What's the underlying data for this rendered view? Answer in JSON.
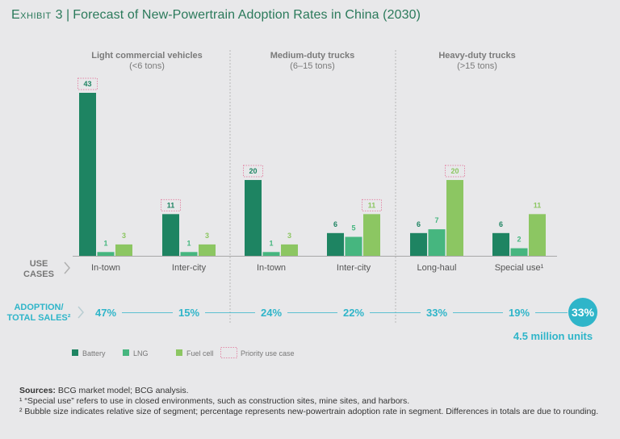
{
  "header": {
    "exhibit": "Exhibit 3",
    "title": "Forecast of New-Powertrain Adoption Rates in China (2030)"
  },
  "colors": {
    "battery": "#1e8462",
    "lng": "#46b67f",
    "fuel_cell": "#8cc662",
    "priority_box": "#e28aa8",
    "accent": "#2fb5c9",
    "title": "#2b7a5b"
  },
  "chart_data": {
    "type": "bar",
    "title": "Forecast of New-Powertrain Adoption Rates in China (2030)",
    "xlabel": "Use cases",
    "ylabel": "",
    "ylim": [
      0,
      43
    ],
    "grid": false,
    "legend": "bottom-left",
    "groups": [
      {
        "title": "Light commercial vehicles",
        "subtitle": "(<6 tons)",
        "use_cases": [
          "In-town",
          "Inter-city"
        ]
      },
      {
        "title": "Medium-duty trucks",
        "subtitle": "(6–15 tons)",
        "use_cases": [
          "In-town",
          "Inter-city"
        ]
      },
      {
        "title": "Heavy-duty trucks",
        "subtitle": "(>15 tons)",
        "use_cases": [
          "Long-haul",
          "Special use¹"
        ]
      }
    ],
    "categories": [
      "In-town",
      "Inter-city",
      "In-town",
      "Inter-city",
      "Long-haul",
      "Special use¹"
    ],
    "series": [
      {
        "name": "Battery",
        "values": [
          43,
          11,
          20,
          6,
          6,
          6
        ]
      },
      {
        "name": "LNG",
        "values": [
          1,
          1,
          1,
          5,
          7,
          2
        ]
      },
      {
        "name": "Fuel cell",
        "values": [
          3,
          3,
          3,
          11,
          20,
          11
        ]
      }
    ],
    "priority": [
      {
        "category_index": 0,
        "series": "Battery"
      },
      {
        "category_index": 1,
        "series": "Battery"
      },
      {
        "category_index": 2,
        "series": "Battery"
      },
      {
        "category_index": 3,
        "series": "Fuel cell"
      },
      {
        "category_index": 4,
        "series": "Fuel cell"
      }
    ],
    "adoption_rates": [
      "47%",
      "15%",
      "24%",
      "22%",
      "33%",
      "19%"
    ],
    "total": {
      "rate": "33%",
      "units": "4.5 million units"
    },
    "row_labels": {
      "use_cases": [
        "USE",
        "CASES"
      ],
      "adoption": [
        "ADOPTION/",
        "TOTAL SALES²"
      ]
    },
    "legend_entries": [
      "Battery",
      "LNG",
      "Fuel cell",
      "Priority use case"
    ]
  },
  "notes": {
    "sources_label": "Sources:",
    "sources_text": " BCG market model; BCG analysis.",
    "footnote1": "¹ “Special use” refers to use in closed environments, such as construction sites, mine sites, and harbors.",
    "footnote2": "² Bubble size indicates relative size of segment; percentage represents new-powertrain adoption rate in segment. Differences in totals are due to rounding."
  }
}
